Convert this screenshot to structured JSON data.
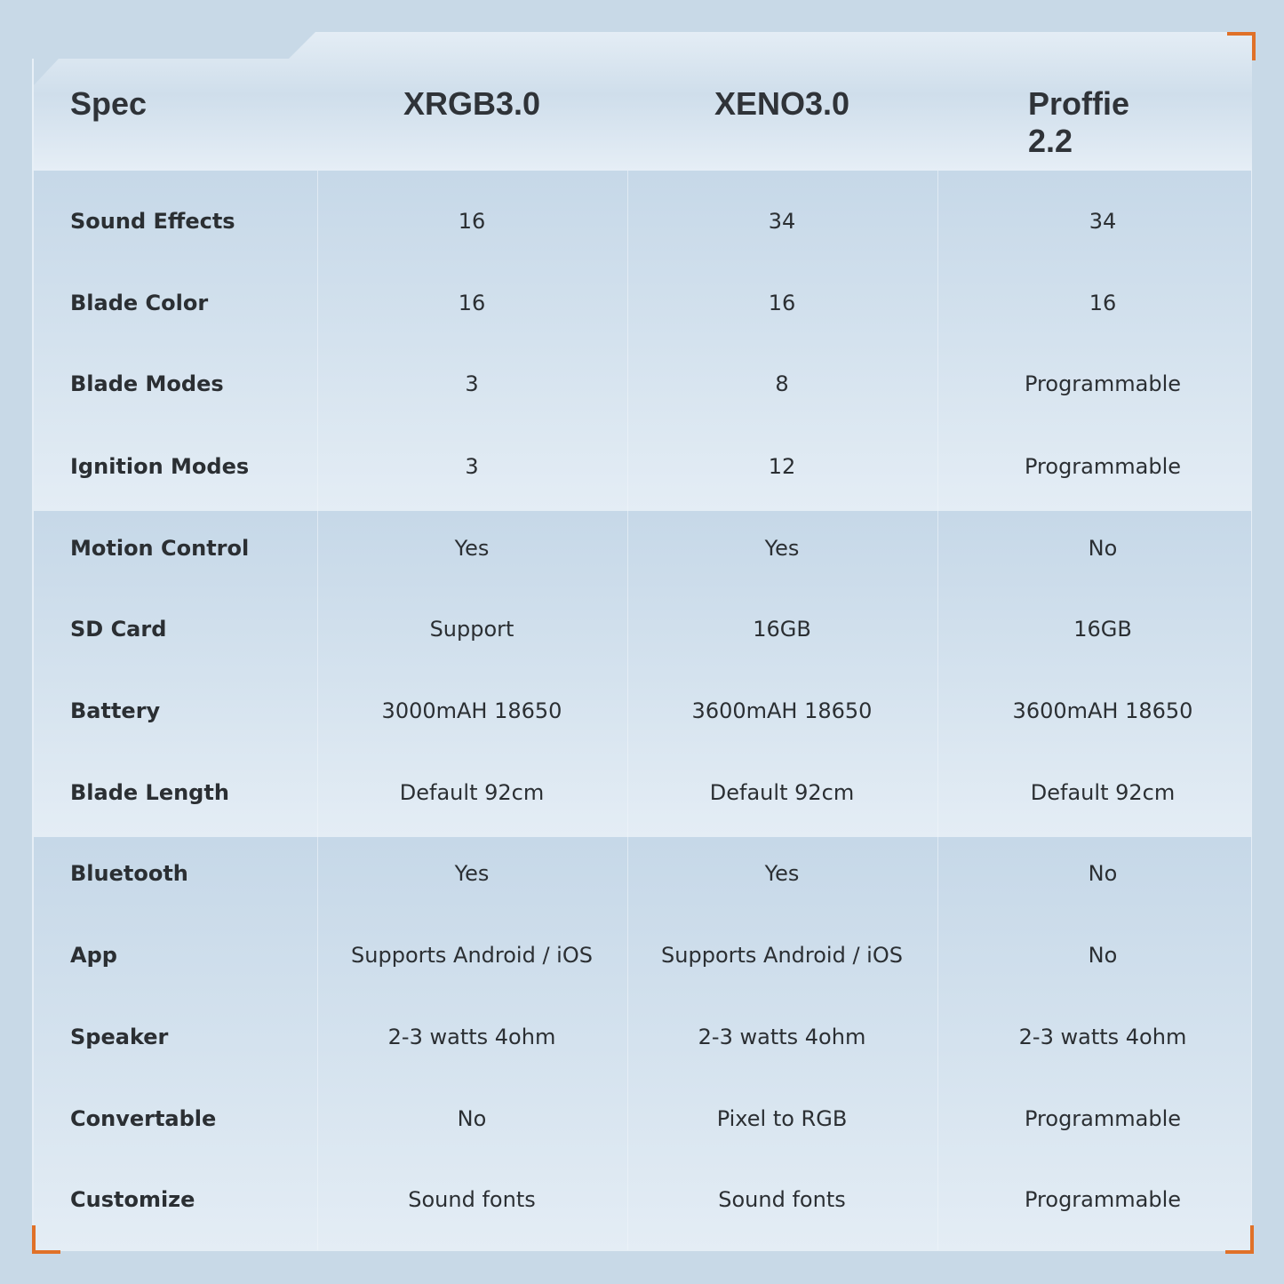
{
  "header": {
    "spec": "Spec",
    "columns": [
      "XRGB3.0",
      "XENO3.0",
      "Proffie 2.2"
    ]
  },
  "rows": [
    {
      "label": "Sound Effects",
      "values": [
        "16",
        "34",
        "34"
      ]
    },
    {
      "label": "Blade Color",
      "values": [
        "16",
        "16",
        "16"
      ]
    },
    {
      "label": "Blade Modes",
      "values": [
        "3",
        "8",
        "Programmable"
      ]
    },
    {
      "label": "Ignition Modes",
      "values": [
        "3",
        "12",
        "Programmable"
      ]
    },
    {
      "label": "Motion Control",
      "values": [
        "Yes",
        "Yes",
        "No"
      ]
    },
    {
      "label": "SD Card",
      "values": [
        "Support",
        "16GB",
        "16GB"
      ]
    },
    {
      "label": "Battery",
      "values": [
        "3000mAH 18650",
        "3600mAH 18650",
        "3600mAH 18650"
      ]
    },
    {
      "label": "Blade Length",
      "values": [
        "Default 92cm",
        "Default 92cm",
        "Default 92cm"
      ]
    },
    {
      "label": "Bluetooth",
      "values": [
        "Yes",
        "Yes",
        "No"
      ]
    },
    {
      "label": "App",
      "values": [
        "Supports Android / iOS",
        "Supports Android / iOS",
        "No"
      ]
    },
    {
      "label": "Speaker",
      "values": [
        "2-3 watts 4ohm",
        "2-3 watts 4ohm",
        "2-3 watts 4ohm"
      ]
    },
    {
      "label": "Convertable",
      "values": [
        "No",
        "Pixel to RGB",
        "Programmable"
      ]
    },
    {
      "label": "Customize",
      "values": [
        "Sound fonts",
        "Sound fonts",
        "Programmable"
      ]
    }
  ],
  "colors": {
    "accent": "#e07128",
    "background": "#c8d9e7",
    "text": "#2b2f33"
  }
}
